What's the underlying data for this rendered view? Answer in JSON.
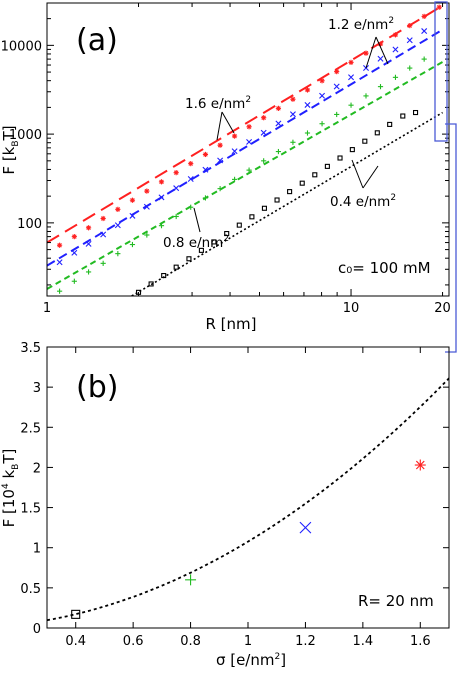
{
  "panel_a": {
    "label": "(a)",
    "xlabel_main": "R [nm]",
    "ylabel_pre": "F [k",
    "ylabel_sub": "B",
    "ylabel_post": "T]",
    "inset_text": "c₀= 100 mM",
    "xtick_labels": [
      "1",
      "10",
      "20"
    ],
    "ytick_labels": [
      "100",
      "1000",
      "10000"
    ],
    "annotations": [
      {
        "text": "1.2 e/nm",
        "sup": "2"
      },
      {
        "text": "1.6 e/nm",
        "sup": "2"
      },
      {
        "text": "0.8 e/nm",
        "sup": "2"
      },
      {
        "text": "0.4 e/nm",
        "sup": "2"
      }
    ]
  },
  "panel_b": {
    "label": "(b)",
    "xlabel_pre": "σ [e/nm",
    "xlabel_sup": "2",
    "xlabel_post": "]",
    "ylabel_pre": "F [10",
    "ylabel_sup": "4",
    "ylabel_mid": " k",
    "ylabel_sub": "B",
    "ylabel_post": "T]",
    "inset_text": "R= 20 nm",
    "xtick_labels": [
      "0.4",
      "0.6",
      "0.8",
      "1",
      "1.2",
      "1.4",
      "1.6"
    ],
    "ytick_labels": [
      "0",
      "0.5",
      "1",
      "1.5",
      "2",
      "2.5",
      "3",
      "3.5"
    ]
  },
  "colors": {
    "red": "#ff2020",
    "blue": "#2020ff",
    "green": "#22bb22",
    "black": "#000000",
    "bracket": "#4a5bd6"
  },
  "chart_data": [
    {
      "type": "line",
      "xscale": "log",
      "yscale": "log",
      "xlim": [
        1,
        21
      ],
      "ylim": [
        15,
        30000
      ],
      "series": [
        {
          "sigma": 1.6,
          "color": "red",
          "line": "long-dash",
          "marker": "asterisk",
          "line_from": [
            1,
            60
          ],
          "line_to": [
            20,
            28000
          ],
          "points": [
            [
              1.1,
              56
            ],
            [
              1.23,
              70
            ],
            [
              1.37,
              88
            ],
            [
              1.53,
              112
            ],
            [
              1.71,
              142
            ],
            [
              1.91,
              180
            ],
            [
              2.13,
              228
            ],
            [
              2.38,
              290
            ],
            [
              2.66,
              368
            ],
            [
              2.97,
              465
            ],
            [
              3.32,
              590
            ],
            [
              3.71,
              750
            ],
            [
              4.14,
              950
            ],
            [
              4.62,
              1210
            ],
            [
              5.16,
              1530
            ],
            [
              5.77,
              1950
            ],
            [
              6.44,
              2470
            ],
            [
              7.19,
              3140
            ],
            [
              8.03,
              3990
            ],
            [
              8.97,
              5060
            ],
            [
              10.0,
              6430
            ],
            [
              11.2,
              8160
            ],
            [
              12.5,
              10350
            ],
            [
              14.0,
              13140
            ],
            [
              15.6,
              16690
            ],
            [
              17.4,
              21180
            ],
            [
              19.5,
              26900
            ]
          ]
        },
        {
          "sigma": 1.2,
          "color": "blue",
          "line": "dash",
          "marker": "x",
          "line_from": [
            1,
            33
          ],
          "line_to": [
            20,
            15000
          ],
          "points": [
            [
              1.1,
              36
            ],
            [
              1.23,
              46
            ],
            [
              1.37,
              58
            ],
            [
              1.53,
              74
            ],
            [
              1.71,
              94
            ],
            [
              1.91,
              120
            ],
            [
              2.13,
              152
            ],
            [
              2.38,
              194
            ],
            [
              2.66,
              246
            ],
            [
              2.97,
              312
            ],
            [
              3.32,
              397
            ],
            [
              3.71,
              505
            ],
            [
              4.14,
              642
            ],
            [
              4.62,
              816
            ],
            [
              5.16,
              1037
            ],
            [
              5.77,
              1318
            ],
            [
              6.44,
              1675
            ],
            [
              7.19,
              2130
            ],
            [
              8.03,
              2706
            ],
            [
              8.97,
              3440
            ],
            [
              10.0,
              4372
            ],
            [
              11.2,
              5557
            ],
            [
              12.5,
              7063
            ],
            [
              14.0,
              8977
            ],
            [
              15.6,
              11410
            ],
            [
              17.4,
              14500
            ]
          ]
        },
        {
          "sigma": 0.8,
          "color": "green",
          "line": "short-dash",
          "marker": "plus",
          "line_from": [
            1,
            18
          ],
          "line_to": [
            20,
            6500
          ],
          "points": [
            [
              1.1,
              17
            ],
            [
              1.23,
              22
            ],
            [
              1.37,
              28
            ],
            [
              1.53,
              35
            ],
            [
              1.71,
              45
            ],
            [
              1.91,
              57
            ],
            [
              2.13,
              73
            ],
            [
              2.38,
              93
            ],
            [
              2.66,
              118
            ],
            [
              2.97,
              150
            ],
            [
              3.32,
              191
            ],
            [
              3.71,
              243
            ],
            [
              4.14,
              309
            ],
            [
              4.62,
              393
            ],
            [
              5.16,
              500
            ],
            [
              5.77,
              636
            ],
            [
              6.44,
              809
            ],
            [
              7.19,
              1029
            ],
            [
              8.03,
              1309
            ],
            [
              8.97,
              1665
            ],
            [
              10.0,
              2118
            ],
            [
              11.2,
              2694
            ],
            [
              12.5,
              3427
            ],
            [
              14.0,
              4360
            ],
            [
              15.6,
              5546
            ],
            [
              17.4,
              7000
            ]
          ]
        },
        {
          "sigma": 0.4,
          "color": "black",
          "line": "dot",
          "marker": "square",
          "line_from": [
            1.9,
            15
          ],
          "line_to": [
            20,
            1750
          ],
          "points": [
            [
              2.0,
              16.5
            ],
            [
              2.2,
              20.5
            ],
            [
              2.42,
              25.5
            ],
            [
              2.66,
              31.7
            ],
            [
              2.93,
              39.4
            ],
            [
              3.22,
              49
            ],
            [
              3.54,
              61
            ],
            [
              3.9,
              75.8
            ],
            [
              4.29,
              94.3
            ],
            [
              4.72,
              117
            ],
            [
              5.19,
              146
            ],
            [
              5.71,
              181
            ],
            [
              6.28,
              225
            ],
            [
              6.91,
              280
            ],
            [
              7.6,
              348
            ],
            [
              8.36,
              433
            ],
            [
              9.2,
              538
            ],
            [
              10.1,
              669
            ],
            [
              11.1,
              832
            ],
            [
              12.2,
              1034
            ],
            [
              13.4,
              1286
            ],
            [
              14.8,
              1599
            ],
            [
              16.3,
              1750
            ]
          ]
        }
      ]
    },
    {
      "type": "scatter",
      "xlim": [
        0.3,
        1.7
      ],
      "ylim": [
        0,
        3.5
      ],
      "fit_curve": "quadratic",
      "points": [
        {
          "x": 0.4,
          "y": 0.17,
          "color": "black",
          "marker": "square"
        },
        {
          "x": 0.8,
          "y": 0.6,
          "color": "green",
          "marker": "plus"
        },
        {
          "x": 1.2,
          "y": 1.25,
          "color": "blue",
          "marker": "x"
        },
        {
          "x": 1.6,
          "y": 2.03,
          "color": "red",
          "marker": "asterisk"
        }
      ]
    }
  ]
}
